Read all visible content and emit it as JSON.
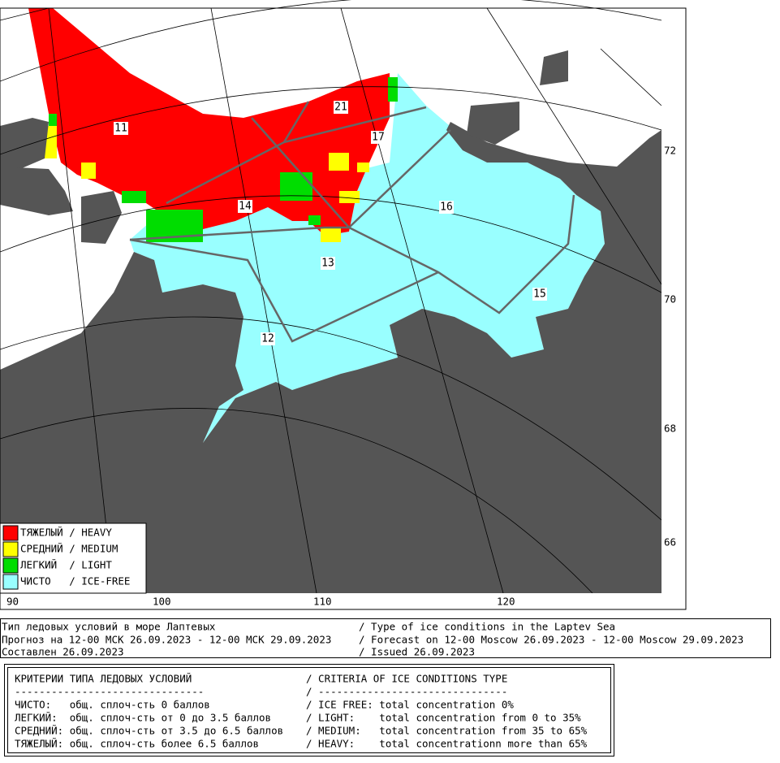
{
  "map": {
    "lat_labels": [
      "72",
      "70",
      "68",
      "66"
    ],
    "lon_labels": [
      "90",
      "100",
      "110",
      "120"
    ],
    "regions": [
      "11",
      "21",
      "17",
      "14",
      "16",
      "13",
      "15",
      "12"
    ]
  },
  "legend": [
    "ТЯЖЕЛЫЙ / HEAVY",
    "СРЕДНИЙ / MEDIUM",
    "ЛЕГКИЙ  / LIGHT",
    "ЧИСТО   / ICE-FREE"
  ],
  "header": {
    "ru": [
      "Тип ледовых условий в море Лаптевых",
      "Прогноз на 12-00 МСК 26.09.2023 - 12-00 МСК 29.09.2023",
      "Составлен 26.09.2023"
    ],
    "en": [
      "/ Type of ice conditions in the Laptev Sea",
      "/ Forecast on 12-00 Moscow 26.09.2023 - 12-00 Moscow 29.09.2023",
      "/ Issued 26.09.2023"
    ]
  },
  "criteria": {
    "title_ru": "КРИТЕРИИ ТИПА ЛЕДОВЫХ УСЛОВИЙ",
    "title_en": "/ CRITERIA OF ICE CONDITIONS TYPE",
    "rule_ru": "-------------------------------",
    "rule_en": "/ -------------------------------",
    "rows": [
      {
        "ru": "ЧИСТО:   общ. сплоч-сть 0 баллов",
        "en": "/ ICE FREE: total concentration 0%"
      },
      {
        "ru": "ЛЕГКИЙ:  общ. сплоч-сть от 0 до 3.5 баллов",
        "en": "/ LIGHT:    total concentration from 0 to 35%"
      },
      {
        "ru": "СРЕДНИЙ: общ. сплоч-сть от 3.5 до 6.5 баллов",
        "en": "/ MEDIUM:   total concentration from 35 to 65%"
      },
      {
        "ru": "ТЯЖЕЛЫЙ: общ. сплоч-сть более 6.5 баллов",
        "en": "/ HEAVY:    total concentrationn more than 65%"
      }
    ]
  }
}
